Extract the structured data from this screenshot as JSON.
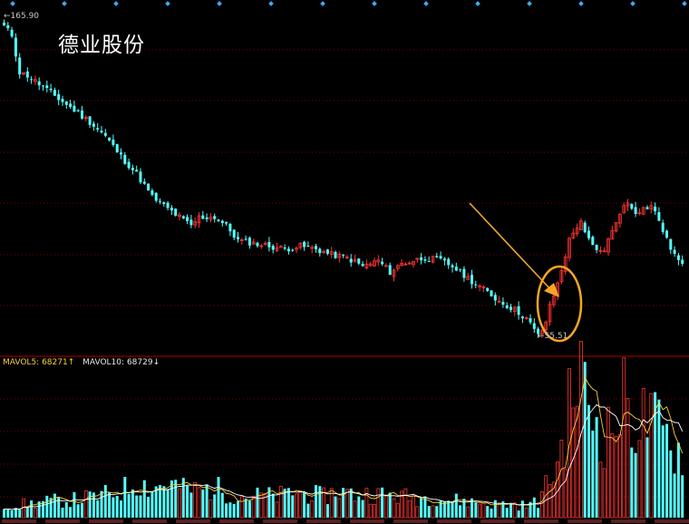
{
  "stock_name": "德业股份",
  "high_price_label": "165.90",
  "low_price_label": "55.51",
  "volume_legend": {
    "mavol5_label": "MAVOL5:",
    "mavol5_value": "68271↑",
    "mavol10_label": "MAVOL10:",
    "mavol10_value": "68729↓"
  },
  "colors": {
    "background": "#000000",
    "up": "#ff3232",
    "down": "#54ffff",
    "grid": "#7a0000",
    "ma5": "#f5d23a",
    "ma10": "#ffffff",
    "annotation": "#f5a623"
  },
  "annotation": {
    "arrow": "arrow-pointing-to-rebound",
    "ellipse": "circled-rebound-area"
  },
  "chart_data": {
    "type": "candlestick",
    "price_range": [
      55.51,
      165.9
    ],
    "price_points": [
      {
        "i": 0,
        "price": 163
      },
      {
        "i": 2,
        "price": 160
      },
      {
        "i": 4,
        "price": 147
      },
      {
        "i": 6,
        "price": 146
      },
      {
        "i": 9,
        "price": 143
      },
      {
        "i": 14,
        "price": 138
      },
      {
        "i": 18,
        "price": 134
      },
      {
        "i": 22,
        "price": 130
      },
      {
        "i": 26,
        "price": 125
      },
      {
        "i": 30,
        "price": 118
      },
      {
        "i": 34,
        "price": 112
      },
      {
        "i": 38,
        "price": 104
      },
      {
        "i": 40,
        "price": 102
      },
      {
        "i": 43,
        "price": 99
      },
      {
        "i": 46,
        "price": 96
      },
      {
        "i": 48,
        "price": 94
      },
      {
        "i": 50,
        "price": 97
      },
      {
        "i": 54,
        "price": 97
      },
      {
        "i": 57,
        "price": 94
      },
      {
        "i": 60,
        "price": 89
      },
      {
        "i": 64,
        "price": 88
      },
      {
        "i": 68,
        "price": 87
      },
      {
        "i": 72,
        "price": 86
      },
      {
        "i": 76,
        "price": 87
      },
      {
        "i": 80,
        "price": 86
      },
      {
        "i": 84,
        "price": 84
      },
      {
        "i": 88,
        "price": 83
      },
      {
        "i": 92,
        "price": 80
      },
      {
        "i": 96,
        "price": 82
      },
      {
        "i": 99,
        "price": 78
      },
      {
        "i": 102,
        "price": 81
      },
      {
        "i": 105,
        "price": 82
      },
      {
        "i": 108,
        "price": 83
      },
      {
        "i": 112,
        "price": 82
      },
      {
        "i": 115,
        "price": 80
      },
      {
        "i": 118,
        "price": 77
      },
      {
        "i": 121,
        "price": 74
      },
      {
        "i": 124,
        "price": 71
      },
      {
        "i": 127,
        "price": 68
      },
      {
        "i": 131,
        "price": 65
      },
      {
        "i": 134,
        "price": 62
      },
      {
        "i": 136,
        "price": 58
      },
      {
        "i": 137,
        "price": 56
      },
      {
        "i": 138,
        "price": 58
      },
      {
        "i": 139,
        "price": 61
      },
      {
        "i": 140,
        "price": 66
      },
      {
        "i": 142,
        "price": 74
      },
      {
        "i": 143,
        "price": 79
      },
      {
        "i": 145,
        "price": 89
      },
      {
        "i": 147,
        "price": 94
      },
      {
        "i": 148,
        "price": 96
      },
      {
        "i": 149,
        "price": 91
      },
      {
        "i": 151,
        "price": 87
      },
      {
        "i": 152,
        "price": 85
      },
      {
        "i": 154,
        "price": 86
      },
      {
        "i": 156,
        "price": 92
      },
      {
        "i": 158,
        "price": 99
      },
      {
        "i": 160,
        "price": 102
      },
      {
        "i": 162,
        "price": 99
      },
      {
        "i": 164,
        "price": 100
      },
      {
        "i": 166,
        "price": 101
      },
      {
        "i": 168,
        "price": 96
      },
      {
        "i": 170,
        "price": 89
      },
      {
        "i": 172,
        "price": 84
      },
      {
        "i": 174,
        "price": 80
      }
    ],
    "volume_points": [
      {
        "i": 0,
        "vol": 8
      },
      {
        "i": 6,
        "vol": 9
      },
      {
        "i": 12,
        "vol": 11
      },
      {
        "i": 18,
        "vol": 12
      },
      {
        "i": 24,
        "vol": 14
      },
      {
        "i": 30,
        "vol": 18
      },
      {
        "i": 34,
        "vol": 24
      },
      {
        "i": 38,
        "vol": 20
      },
      {
        "i": 42,
        "vol": 23
      },
      {
        "i": 46,
        "vol": 19
      },
      {
        "i": 50,
        "vol": 18
      },
      {
        "i": 54,
        "vol": 20
      },
      {
        "i": 58,
        "vol": 16
      },
      {
        "i": 62,
        "vol": 14
      },
      {
        "i": 66,
        "vol": 15
      },
      {
        "i": 70,
        "vol": 14
      },
      {
        "i": 74,
        "vol": 17
      },
      {
        "i": 78,
        "vol": 16
      },
      {
        "i": 82,
        "vol": 14
      },
      {
        "i": 86,
        "vol": 18
      },
      {
        "i": 90,
        "vol": 15
      },
      {
        "i": 94,
        "vol": 16
      },
      {
        "i": 98,
        "vol": 15
      },
      {
        "i": 102,
        "vol": 14
      },
      {
        "i": 106,
        "vol": 13
      },
      {
        "i": 110,
        "vol": 14
      },
      {
        "i": 114,
        "vol": 12
      },
      {
        "i": 118,
        "vol": 11
      },
      {
        "i": 122,
        "vol": 10
      },
      {
        "i": 126,
        "vol": 9
      },
      {
        "i": 130,
        "vol": 9
      },
      {
        "i": 134,
        "vol": 8
      },
      {
        "i": 137,
        "vol": 11
      },
      {
        "i": 139,
        "vol": 20
      },
      {
        "i": 141,
        "vol": 30
      },
      {
        "i": 143,
        "vol": 45
      },
      {
        "i": 145,
        "vol": 70
      },
      {
        "i": 146,
        "vol": 85
      },
      {
        "i": 147,
        "vol": 92
      },
      {
        "i": 148,
        "vol": 95
      },
      {
        "i": 149,
        "vol": 80
      },
      {
        "i": 151,
        "vol": 70
      },
      {
        "i": 153,
        "vol": 60
      },
      {
        "i": 155,
        "vol": 55
      },
      {
        "i": 157,
        "vol": 65
      },
      {
        "i": 159,
        "vol": 75
      },
      {
        "i": 161,
        "vol": 70
      },
      {
        "i": 163,
        "vol": 62
      },
      {
        "i": 165,
        "vol": 66
      },
      {
        "i": 167,
        "vol": 60
      },
      {
        "i": 169,
        "vol": 55
      },
      {
        "i": 171,
        "vol": 50
      },
      {
        "i": 173,
        "vol": 45
      },
      {
        "i": 174,
        "vol": 42
      }
    ]
  }
}
